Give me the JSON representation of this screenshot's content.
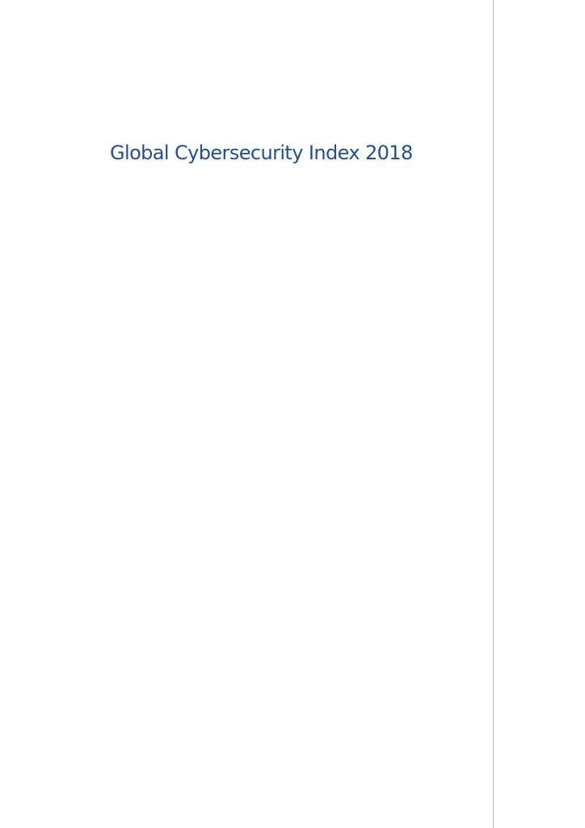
{
  "document": {
    "title": "Global Cybersecurity Index 2018"
  },
  "colors": {
    "title_text": "#1f4e9a",
    "margin_rule": "#b8b8b8",
    "page_background": "#ffffff"
  }
}
